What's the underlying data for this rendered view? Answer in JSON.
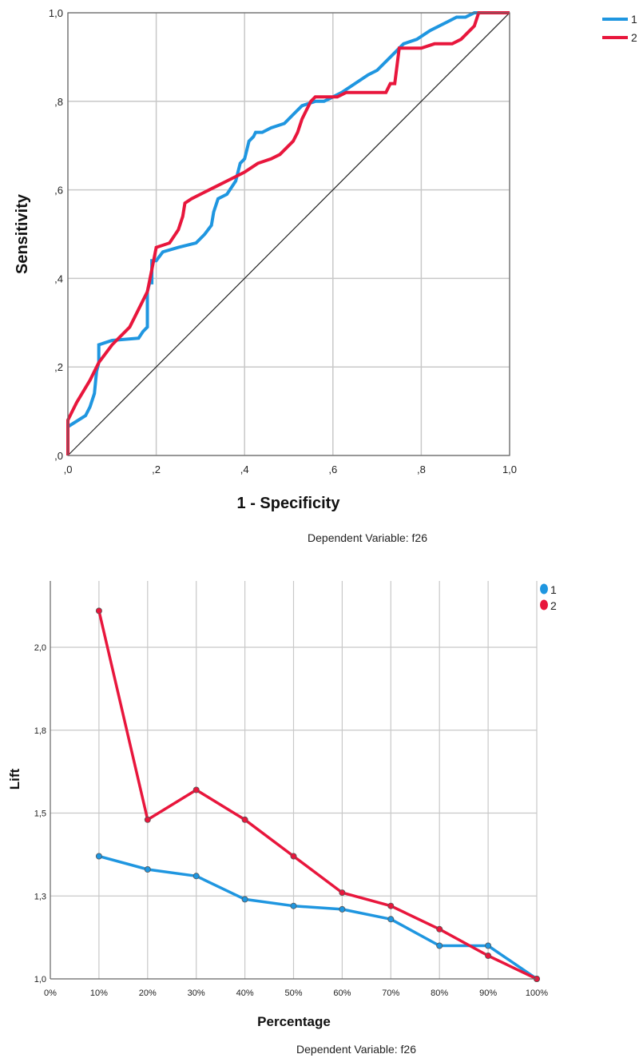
{
  "colors": {
    "series_1": "#1f96e0",
    "series_2": "#e8163c",
    "grid": "#c8c8c8",
    "axis": "#666666",
    "diagonal": "#222222"
  },
  "chart_data": [
    {
      "type": "line",
      "title": "",
      "xlabel": "1 - Specificity",
      "ylabel": "Sensitivity",
      "note": "Dependent Variable: f26",
      "xlim": [
        0,
        1
      ],
      "ylim": [
        0,
        1
      ],
      "x_ticks": [
        ",0",
        ",2",
        ",4",
        ",6",
        ",8",
        "1,0"
      ],
      "y_ticks": [
        ",0",
        ",2",
        ",4",
        ",6",
        ",8",
        "1,0"
      ],
      "grid": true,
      "legend_position": "top-right",
      "reference_line": "diagonal",
      "series": [
        {
          "name": "1",
          "x": [
            0.0,
            0.0,
            0.04,
            0.05,
            0.06,
            0.065,
            0.07,
            0.07,
            0.1,
            0.16,
            0.17,
            0.18,
            0.18,
            0.185,
            0.19,
            0.19,
            0.2,
            0.215,
            0.25,
            0.29,
            0.31,
            0.325,
            0.33,
            0.34,
            0.36,
            0.38,
            0.39,
            0.4,
            0.405,
            0.41,
            0.42,
            0.425,
            0.44,
            0.46,
            0.49,
            0.51,
            0.53,
            0.56,
            0.58,
            0.6,
            0.62,
            0.65,
            0.68,
            0.7,
            0.73,
            0.76,
            0.79,
            0.82,
            0.86,
            0.88,
            0.9,
            0.92,
            0.94,
            0.96,
            1.0
          ],
          "y": [
            0.0,
            0.065,
            0.09,
            0.11,
            0.14,
            0.19,
            0.21,
            0.25,
            0.26,
            0.265,
            0.28,
            0.29,
            0.37,
            0.39,
            0.39,
            0.44,
            0.44,
            0.46,
            0.47,
            0.48,
            0.5,
            0.52,
            0.55,
            0.58,
            0.59,
            0.62,
            0.66,
            0.67,
            0.69,
            0.71,
            0.72,
            0.73,
            0.73,
            0.74,
            0.75,
            0.77,
            0.79,
            0.8,
            0.8,
            0.81,
            0.82,
            0.84,
            0.86,
            0.87,
            0.9,
            0.93,
            0.94,
            0.96,
            0.98,
            0.99,
            0.99,
            1.0,
            1.0,
            1.0,
            1.0
          ]
        },
        {
          "name": "2",
          "x": [
            0.0,
            0.0,
            0.01,
            0.02,
            0.05,
            0.07,
            0.1,
            0.14,
            0.15,
            0.18,
            0.19,
            0.2,
            0.23,
            0.25,
            0.26,
            0.265,
            0.28,
            0.3,
            0.32,
            0.34,
            0.36,
            0.38,
            0.4,
            0.43,
            0.46,
            0.48,
            0.51,
            0.52,
            0.53,
            0.54,
            0.55,
            0.56,
            0.61,
            0.63,
            0.65,
            0.72,
            0.73,
            0.74,
            0.75,
            0.8,
            0.83,
            0.87,
            0.89,
            0.9,
            0.92,
            0.93,
            1.0
          ],
          "y": [
            0.0,
            0.08,
            0.1,
            0.12,
            0.17,
            0.21,
            0.25,
            0.29,
            0.31,
            0.37,
            0.42,
            0.47,
            0.48,
            0.51,
            0.54,
            0.57,
            0.58,
            0.59,
            0.6,
            0.61,
            0.62,
            0.63,
            0.64,
            0.66,
            0.67,
            0.68,
            0.71,
            0.73,
            0.76,
            0.78,
            0.8,
            0.81,
            0.81,
            0.82,
            0.82,
            0.82,
            0.84,
            0.84,
            0.92,
            0.92,
            0.93,
            0.93,
            0.94,
            0.95,
            0.97,
            1.0,
            1.0
          ]
        }
      ]
    },
    {
      "type": "line",
      "title": "",
      "xlabel": "Percentage",
      "ylabel": "Lift",
      "note": "Dependent Variable: f26",
      "x_ticks": [
        "0%",
        "10%",
        "20%",
        "30%",
        "40%",
        "50%",
        "60%",
        "70%",
        "80%",
        "90%",
        "100%"
      ],
      "y_ticks": [
        "1,0",
        "1,3",
        "1,5",
        "1,8",
        "2,0"
      ],
      "ylim": [
        1.0,
        2.2
      ],
      "grid": true,
      "legend_position": "top-right",
      "markers": "circle",
      "series": [
        {
          "name": "1",
          "x": [
            10,
            20,
            30,
            40,
            50,
            60,
            70,
            80,
            90,
            100
          ],
          "y": [
            1.37,
            1.33,
            1.31,
            1.24,
            1.22,
            1.21,
            1.18,
            1.1,
            1.1,
            1.0
          ]
        },
        {
          "name": "2",
          "x": [
            10,
            20,
            30,
            40,
            50,
            60,
            70,
            80,
            90,
            100
          ],
          "y": [
            2.11,
            1.48,
            1.57,
            1.48,
            1.37,
            1.26,
            1.22,
            1.15,
            1.07,
            1.0
          ]
        }
      ]
    }
  ]
}
